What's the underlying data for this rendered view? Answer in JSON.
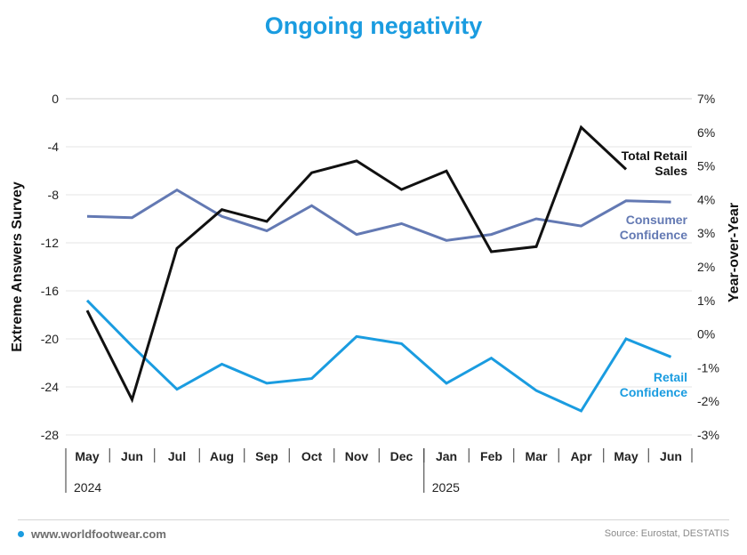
{
  "title": "Ongoing negativity",
  "footer": {
    "website": "www.worldfootwear.com",
    "source": "Source: Eurostat, DESTATIS"
  },
  "colors": {
    "title": "#1a9ce0",
    "total_retail_sales": "#111111",
    "consumer_confidence": "#6379b3",
    "retail_confidence": "#1a9ce0",
    "grid": "#e6e6e6"
  },
  "chart_data": {
    "type": "line",
    "categories": [
      "May",
      "Jun",
      "Jul",
      "Aug",
      "Sep",
      "Oct",
      "Nov",
      "Dec",
      "Jan",
      "Feb",
      "Mar",
      "Apr",
      "May",
      "Jun"
    ],
    "years": [
      {
        "label": "2024",
        "start_index": 0
      },
      {
        "label": "2025",
        "start_index": 8
      }
    ],
    "ylabel": "Extreme Answers Survey",
    "y2label": "Year-over-Year",
    "ylim": [
      -28,
      0
    ],
    "y_ticks": [
      0,
      -4,
      -8,
      -12,
      -16,
      -20,
      -24,
      -28
    ],
    "y2lim": [
      -3,
      7
    ],
    "y2_ticks": [
      7,
      6,
      5,
      4,
      3,
      2,
      1,
      0,
      -1,
      -2,
      -3
    ],
    "y2_tick_labels": [
      "7%",
      "6%",
      "5%",
      "4%",
      "3%",
      "2%",
      "1%",
      "0%",
      "-1%",
      "-2%",
      "-3%"
    ],
    "grid": true,
    "series": [
      {
        "name": "Total Retail Sales",
        "label_lines": [
          "Total Retail",
          "Sales"
        ],
        "axis": "right",
        "color": "#111111",
        "values": [
          0.7,
          -1.95,
          2.55,
          3.7,
          3.35,
          4.8,
          5.15,
          4.3,
          4.85,
          2.45,
          2.6,
          6.15,
          4.9,
          null
        ]
      },
      {
        "name": "Consumer Confidence",
        "label_lines": [
          "Consumer",
          "Confidence"
        ],
        "axis": "left",
        "color": "#6379b3",
        "values": [
          -9.8,
          -9.9,
          -7.6,
          -9.8,
          -11.0,
          -8.9,
          -11.3,
          -10.4,
          -11.8,
          -11.3,
          -10.0,
          -10.6,
          -8.5,
          -8.6
        ]
      },
      {
        "name": "Retail Confidence",
        "label_lines": [
          "Retail",
          "Confidence"
        ],
        "axis": "left",
        "color": "#1a9ce0",
        "values": [
          -16.8,
          -20.6,
          -24.2,
          -22.1,
          -23.7,
          -23.3,
          -19.8,
          -20.4,
          -23.7,
          -21.6,
          -24.3,
          -26.0,
          -20.0,
          -21.5
        ]
      }
    ]
  }
}
